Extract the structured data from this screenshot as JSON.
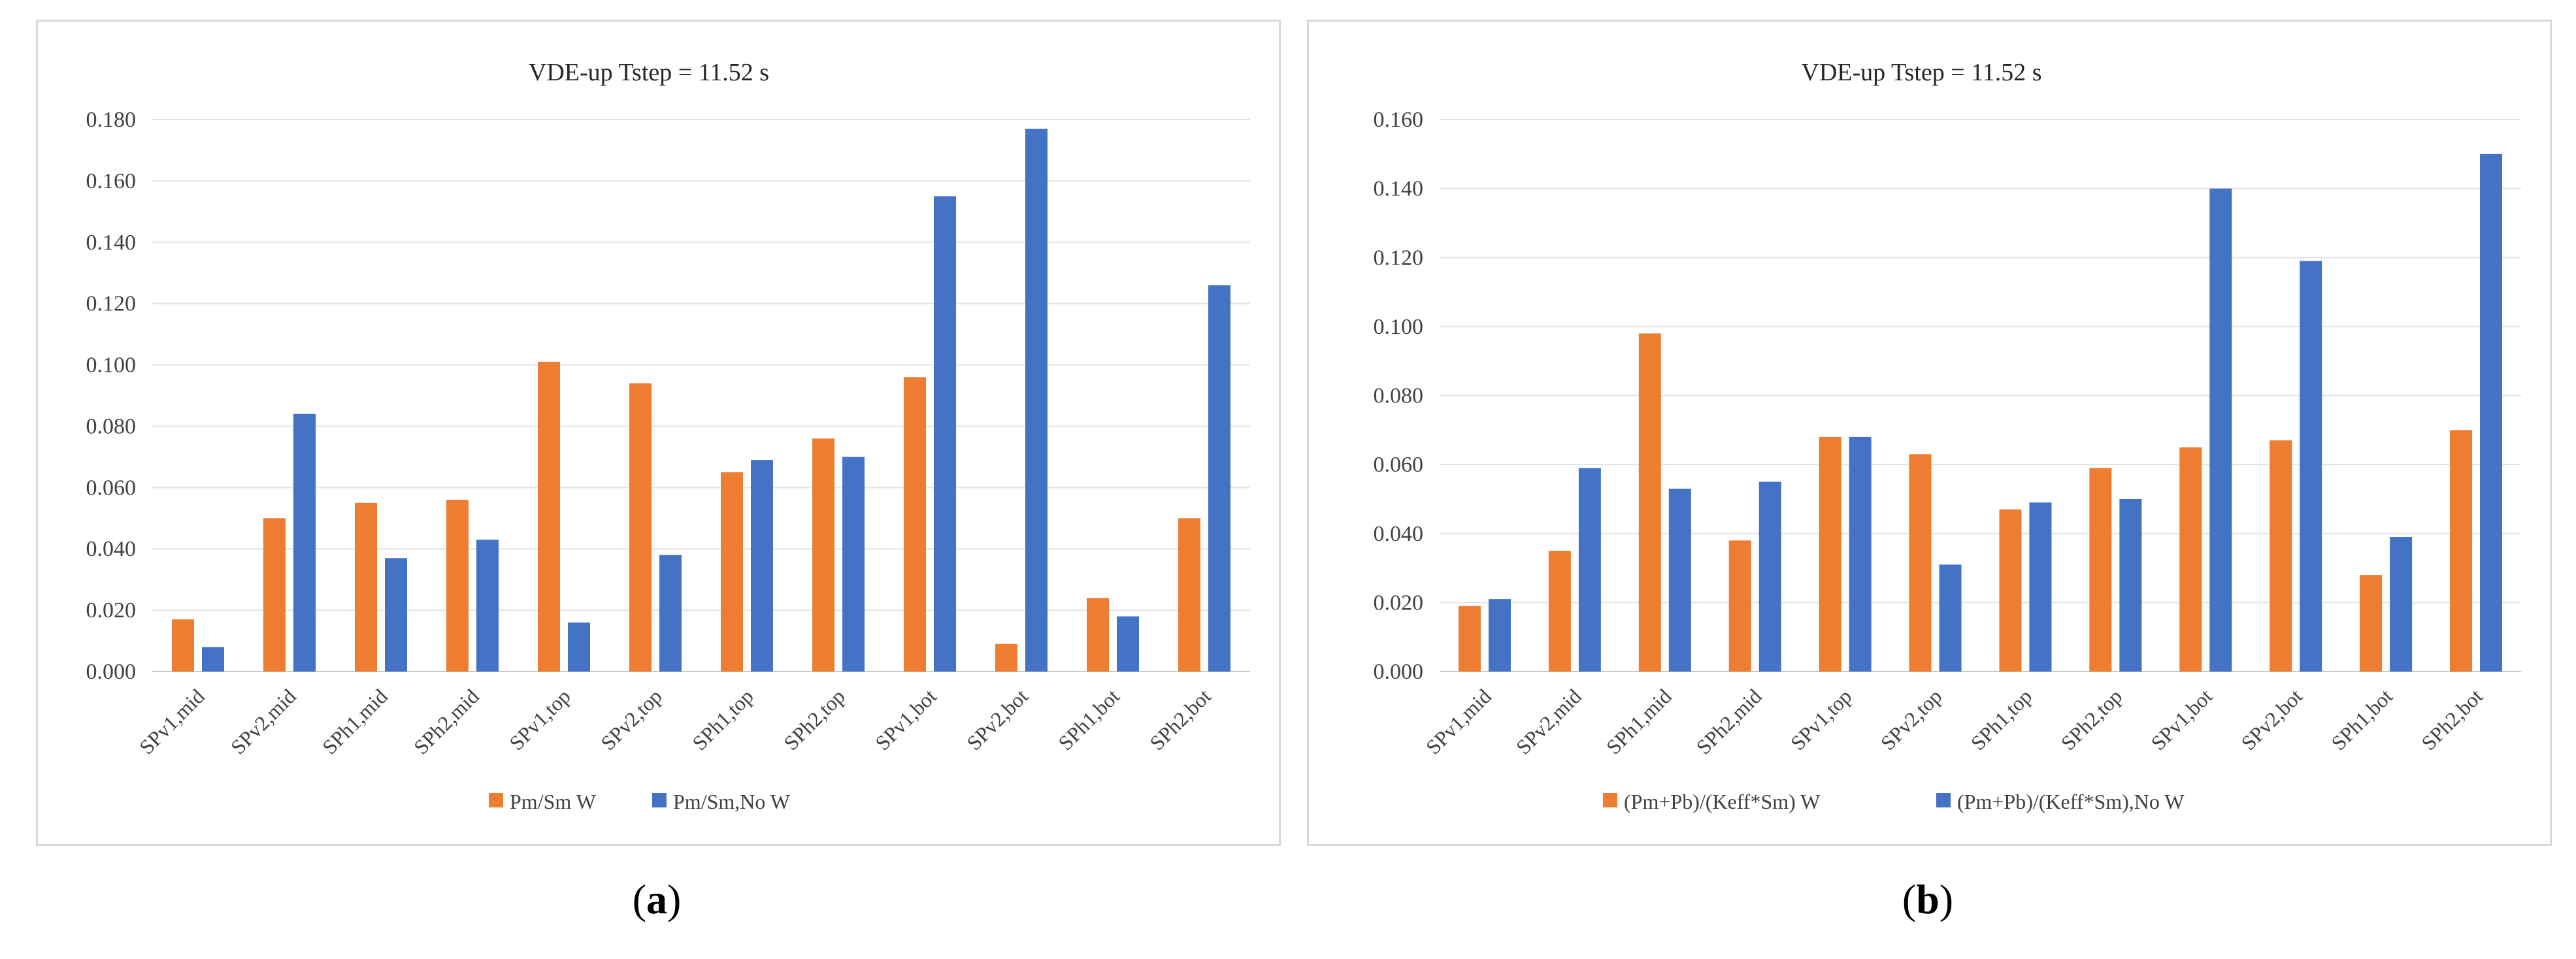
{
  "chart_data": [
    {
      "type": "bar",
      "title": "VDE-up Tstep = 11.52 s",
      "categories": [
        "SPv1,mid",
        "SPv2,mid",
        "SPh1,mid",
        "SPh2,mid",
        "SPv1,top",
        "SPv2,top",
        "SPh1,top",
        "SPh2,top",
        "SPv1,bot",
        "SPv2,bot",
        "SPh1,bot",
        "SPh2,bot"
      ],
      "series": [
        {
          "name": "Pm/Sm W",
          "color": "#ED7D31",
          "values": [
            0.017,
            0.05,
            0.055,
            0.056,
            0.101,
            0.094,
            0.065,
            0.076,
            0.096,
            0.009,
            0.024,
            0.05
          ]
        },
        {
          "name": "Pm/Sm,No W",
          "color": "#4472C4",
          "values": [
            0.008,
            0.084,
            0.037,
            0.043,
            0.016,
            0.038,
            0.069,
            0.07,
            0.155,
            0.177,
            0.018,
            0.126
          ]
        }
      ],
      "ylim": [
        0,
        0.18
      ],
      "yticks": [
        "0.000",
        "0.020",
        "0.040",
        "0.060",
        "0.080",
        "0.100",
        "0.120",
        "0.140",
        "0.160",
        "0.180"
      ],
      "grid": true,
      "legend": "bottom",
      "xlabel": "",
      "ylabel": ""
    },
    {
      "type": "bar",
      "title": "VDE-up Tstep = 11.52 s",
      "categories": [
        "SPv1,mid",
        "SPv2,mid",
        "SPh1,mid",
        "SPh2,mid",
        "SPv1,top",
        "SPv2,top",
        "SPh1,top",
        "SPh2,top",
        "SPv1,bot",
        "SPv2,bot",
        "SPh1,bot",
        "SPh2,bot"
      ],
      "series": [
        {
          "name": "(Pm+Pb)/(Keff*Sm) W",
          "color": "#ED7D31",
          "values": [
            0.019,
            0.035,
            0.098,
            0.038,
            0.068,
            0.063,
            0.047,
            0.059,
            0.065,
            0.067,
            0.028,
            0.07
          ]
        },
        {
          "name": "(Pm+Pb)/(Keff*Sm),No W",
          "color": "#4472C4",
          "values": [
            0.021,
            0.059,
            0.053,
            0.055,
            0.068,
            0.031,
            0.049,
            0.05,
            0.14,
            0.119,
            0.039,
            0.15
          ]
        }
      ],
      "ylim": [
        0,
        0.16
      ],
      "yticks": [
        "0.000",
        "0.020",
        "0.040",
        "0.060",
        "0.080",
        "0.100",
        "0.120",
        "0.140",
        "0.160"
      ],
      "grid": true,
      "legend": "bottom",
      "xlabel": "",
      "ylabel": ""
    }
  ],
  "captions": [
    {
      "paren_open": "(",
      "letter": "a",
      "paren_close": ")"
    },
    {
      "paren_open": "(",
      "letter": "b",
      "paren_close": ")"
    }
  ]
}
